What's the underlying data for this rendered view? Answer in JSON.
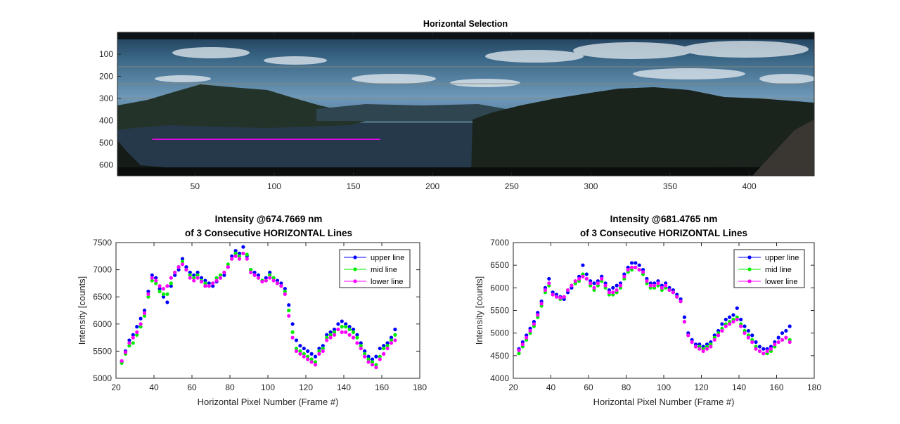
{
  "figure": {
    "top_panel": {
      "title": "Horizontal Selection",
      "x_ticks": [
        50,
        100,
        150,
        200,
        250,
        300,
        350,
        400
      ],
      "y_ticks": [
        100,
        200,
        300,
        400,
        500,
        600
      ],
      "xlim": [
        1,
        441
      ],
      "ylim": [
        1,
        650
      ],
      "selection_line": {
        "x_start": 23,
        "x_end": 167,
        "y": 485,
        "color": "#ff00ff"
      },
      "scene_colors": {
        "sky_top": "#1d3a55",
        "sky_mid": "#6f98b8",
        "mountain": "#1f2e23",
        "water": "#26394a",
        "cloud": "#e8eef2"
      }
    }
  },
  "chart_data": [
    {
      "type": "scatter",
      "title_line1": "Intensity @674.7669 nm",
      "title_line2": "of 3 Consecutive HORIZONTAL Lines",
      "xlabel": "Horizontal Pixel Number (Frame #)",
      "ylabel": "Intensity [counts]",
      "xlim": [
        20,
        180
      ],
      "ylim": [
        5000,
        7500
      ],
      "x_ticks": [
        20,
        40,
        60,
        80,
        100,
        120,
        140,
        160,
        180
      ],
      "y_ticks": [
        5000,
        5500,
        6000,
        6500,
        7000,
        7500
      ],
      "legend_position": "top-right",
      "x": [
        23,
        25,
        27,
        29,
        31,
        33,
        35,
        37,
        39,
        41,
        43,
        45,
        47,
        49,
        51,
        53,
        55,
        57,
        59,
        61,
        63,
        65,
        67,
        69,
        71,
        73,
        75,
        77,
        79,
        81,
        83,
        85,
        87,
        89,
        91,
        93,
        95,
        97,
        99,
        101,
        103,
        105,
        107,
        109,
        111,
        113,
        115,
        117,
        119,
        121,
        123,
        125,
        127,
        129,
        131,
        133,
        135,
        137,
        139,
        141,
        143,
        145,
        147,
        149,
        151,
        153,
        155,
        157,
        159,
        161,
        163,
        165,
        167
      ],
      "series": [
        {
          "name": "upper line",
          "color": "#0000ff",
          "values": [
            5300,
            5500,
            5700,
            5800,
            5950,
            6100,
            6250,
            6600,
            6900,
            6850,
            6650,
            6500,
            6400,
            6700,
            6900,
            7000,
            7200,
            7050,
            6950,
            6900,
            6950,
            6850,
            6800,
            6750,
            6700,
            6780,
            6850,
            6900,
            7050,
            7250,
            7350,
            7300,
            7420,
            7250,
            7000,
            6950,
            6900,
            6800,
            6850,
            6950,
            6850,
            6800,
            6750,
            6650,
            6350,
            6000,
            5700,
            5600,
            5550,
            5500,
            5450,
            5400,
            5550,
            5600,
            5800,
            5850,
            5900,
            6000,
            6050,
            6000,
            5950,
            5900,
            5800,
            5650,
            5500,
            5400,
            5350,
            5400,
            5550,
            5600,
            5650,
            5750,
            5900
          ]
        },
        {
          "name": "mid line",
          "color": "#00ee00",
          "values": [
            5280,
            5450,
            5600,
            5650,
            5800,
            5950,
            6150,
            6500,
            6800,
            6750,
            6600,
            6550,
            6550,
            6750,
            6950,
            7050,
            7150,
            7000,
            6900,
            6850,
            6900,
            6800,
            6750,
            6700,
            6750,
            6850,
            6900,
            6950,
            7100,
            7200,
            7300,
            7250,
            7300,
            7280,
            7000,
            6900,
            6850,
            6800,
            6800,
            6900,
            6850,
            6750,
            6700,
            6600,
            6250,
            5850,
            5550,
            5500,
            5450,
            5400,
            5350,
            5300,
            5500,
            5550,
            5750,
            5800,
            5850,
            5900,
            5950,
            5950,
            5900,
            5850,
            5750,
            5600,
            5450,
            5350,
            5300,
            5250,
            5400,
            5550,
            5600,
            5700,
            5800
          ]
        },
        {
          "name": "lower line",
          "color": "#ff00ff",
          "values": [
            5320,
            5480,
            5650,
            5750,
            5850,
            6000,
            6200,
            6550,
            6850,
            6800,
            6700,
            6650,
            6700,
            6850,
            6950,
            7050,
            7100,
            7000,
            6850,
            6800,
            6850,
            6780,
            6700,
            6700,
            6750,
            6800,
            6850,
            6950,
            7050,
            7200,
            7250,
            7200,
            7300,
            7200,
            6950,
            6900,
            6850,
            6780,
            6800,
            6850,
            6800,
            6750,
            6700,
            6550,
            6150,
            5750,
            5500,
            5450,
            5400,
            5350,
            5300,
            5250,
            5450,
            5500,
            5700,
            5750,
            5800,
            5900,
            5850,
            5850,
            5800,
            5750,
            5650,
            5550,
            5400,
            5300,
            5250,
            5200,
            5350,
            5450,
            5550,
            5650,
            5700
          ]
        }
      ]
    },
    {
      "type": "scatter",
      "title_line1": "Intensity @681.4765 nm",
      "title_line2": "of 3 Consecutive HORIZONTAL Lines",
      "xlabel": "Horizontal Pixel Number (Frame #)",
      "ylabel": "Intensity [counts]",
      "xlim": [
        20,
        180
      ],
      "ylim": [
        4000,
        7000
      ],
      "x_ticks": [
        20,
        40,
        60,
        80,
        100,
        120,
        140,
        160,
        180
      ],
      "y_ticks": [
        4000,
        4500,
        5000,
        5500,
        6000,
        6500,
        7000
      ],
      "legend_position": "top-right",
      "x": [
        23,
        25,
        27,
        29,
        31,
        33,
        35,
        37,
        39,
        41,
        43,
        45,
        47,
        49,
        51,
        53,
        55,
        57,
        59,
        61,
        63,
        65,
        67,
        69,
        71,
        73,
        75,
        77,
        79,
        81,
        83,
        85,
        87,
        89,
        91,
        93,
        95,
        97,
        99,
        101,
        103,
        105,
        107,
        109,
        111,
        113,
        115,
        117,
        119,
        121,
        123,
        125,
        127,
        129,
        131,
        133,
        135,
        137,
        139,
        141,
        143,
        145,
        147,
        149,
        151,
        153,
        155,
        157,
        159,
        161,
        163,
        165,
        167
      ],
      "series": [
        {
          "name": "upper line",
          "color": "#0000ff",
          "values": [
            4650,
            4800,
            4950,
            5100,
            5250,
            5450,
            5700,
            6000,
            6200,
            5900,
            5850,
            5800,
            5750,
            5900,
            6000,
            6100,
            6250,
            6500,
            6300,
            6150,
            6100,
            6150,
            6250,
            6100,
            5950,
            6000,
            6050,
            6100,
            6300,
            6450,
            6550,
            6550,
            6500,
            6400,
            6200,
            6100,
            6100,
            6150,
            6050,
            6100,
            6000,
            5950,
            5850,
            5750,
            5350,
            5000,
            4850,
            4750,
            4750,
            4700,
            4750,
            4800,
            4950,
            5050,
            5200,
            5300,
            5350,
            5400,
            5550,
            5300,
            5150,
            5050,
            4950,
            4800,
            4700,
            4650,
            4650,
            4700,
            4800,
            4900,
            5000,
            5050,
            5150
          ]
        },
        {
          "name": "mid line",
          "color": "#00ee00",
          "values": [
            4550,
            4700,
            4850,
            5000,
            5150,
            5350,
            5600,
            5900,
            6050,
            5850,
            5800,
            5750,
            5800,
            5950,
            6050,
            6100,
            6150,
            6300,
            6200,
            6050,
            5950,
            6050,
            6150,
            6000,
            5850,
            5850,
            5900,
            6000,
            6200,
            6350,
            6400,
            6450,
            6400,
            6300,
            6100,
            6000,
            6000,
            6050,
            5950,
            6000,
            5950,
            5900,
            5800,
            5700,
            5250,
            4950,
            4800,
            4700,
            4700,
            4650,
            4700,
            4750,
            4900,
            5000,
            5100,
            5200,
            5250,
            5300,
            5350,
            5200,
            5050,
            4950,
            4850,
            4700,
            4600,
            4550,
            4550,
            4600,
            4700,
            4800,
            4850,
            4900,
            4850
          ]
        },
        {
          "name": "lower line",
          "color": "#ff00ff",
          "values": [
            4620,
            4750,
            4900,
            5050,
            5200,
            5400,
            5650,
            5950,
            6100,
            5850,
            5800,
            5780,
            5800,
            5950,
            6050,
            6150,
            6200,
            6250,
            6200,
            6100,
            6000,
            6100,
            6200,
            6050,
            5900,
            5900,
            5950,
            6050,
            6250,
            6400,
            6450,
            6450,
            6400,
            6350,
            6150,
            6050,
            6050,
            6100,
            6000,
            6050,
            5950,
            5900,
            5800,
            5700,
            5250,
            4950,
            4800,
            4700,
            4650,
            4600,
            4650,
            4700,
            4850,
            4950,
            5050,
            5150,
            5200,
            5250,
            5300,
            5150,
            5000,
            4900,
            4800,
            4650,
            4600,
            4550,
            4600,
            4650,
            4750,
            4800,
            4850,
            4900,
            4800
          ]
        }
      ]
    }
  ]
}
